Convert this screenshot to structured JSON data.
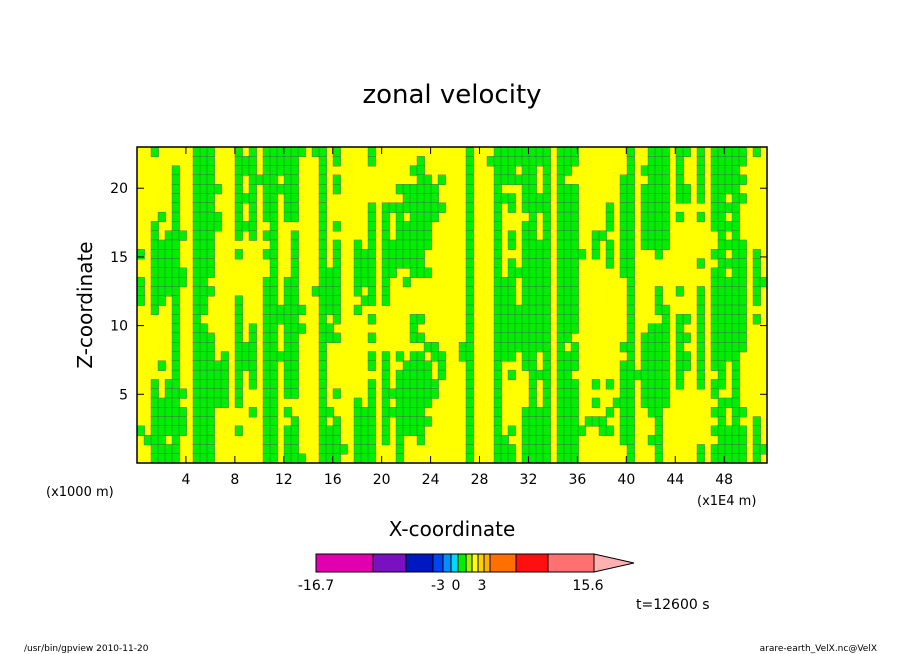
{
  "chart_data": {
    "type": "heatmap",
    "title": "zonal velocity",
    "xlabel": "X-coordinate",
    "ylabel": "Z-coordinate",
    "x_unit_left": "(x1000 m)",
    "x_unit_right": "(x1E4 m)",
    "xlim": [
      0,
      51.5
    ],
    "ylim": [
      0,
      23
    ],
    "x_ticks": [
      "4",
      "8",
      "12",
      "16",
      "20",
      "24",
      "28",
      "32",
      "36",
      "40",
      "44",
      "48"
    ],
    "y_ticks": [
      "5",
      "10",
      "15",
      "20"
    ],
    "field_colors": {
      "negative": "#00ee00",
      "positive": "#ffff00"
    },
    "colorbar": {
      "segments": [
        {
          "from": -16.7,
          "to": -10.8,
          "color": "#e000b0"
        },
        {
          "from": -10.8,
          "to": -7.3,
          "color": "#7a10c0"
        },
        {
          "from": -7.3,
          "to": -5.4,
          "color": "#0018c0"
        },
        {
          "from": -5.4,
          "to": -4.2,
          "color": "#0044f0"
        },
        {
          "from": -4.2,
          "to": -3.4,
          "color": "#0090ff"
        },
        {
          "from": -3.4,
          "to": -2.5,
          "color": "#00d8ff"
        },
        {
          "from": -2.5,
          "to": -1.2,
          "color": "#00ee00"
        },
        {
          "from": -1.2,
          "to": 0,
          "color": "#a0f000"
        },
        {
          "from": 0,
          "to": 1.0,
          "color": "#ffff00"
        },
        {
          "from": 1.0,
          "to": 2.0,
          "color": "#ffd000"
        },
        {
          "from": 2.0,
          "to": 3.0,
          "color": "#ffb000"
        },
        {
          "from": 3.0,
          "to": 5.0,
          "color": "#ff7000"
        },
        {
          "from": 5.0,
          "to": 8.5,
          "color": "#ff1010"
        },
        {
          "from": 8.5,
          "to": 15.6,
          "color": "#ff7070"
        }
      ],
      "arrow_color": "#ffb0b0",
      "labels": [
        "-16.7",
        "-3",
        "0",
        "3",
        "15.6"
      ]
    },
    "time_label": "t=12600 s",
    "footer_left": "/usr/bin/gpview  2010-11-20",
    "footer_right": "arare-earth_VelX.nc@VelX"
  }
}
